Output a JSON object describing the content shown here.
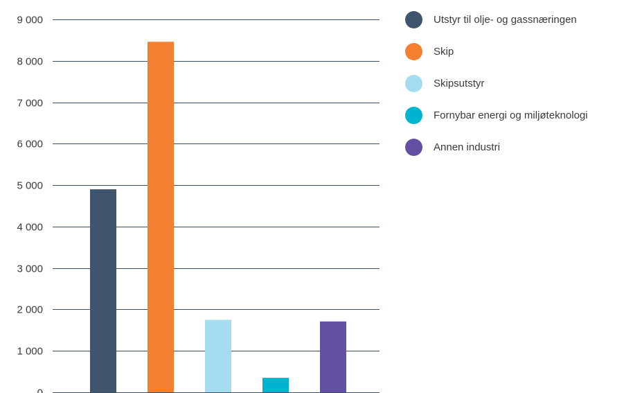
{
  "chart_data": {
    "type": "bar",
    "categories": [
      "Utstyr til olje- og gassnæringen",
      "Skip",
      "Skipsutstyr",
      "Fornybar energi og miljøteknologi",
      "Annen industri"
    ],
    "values": [
      4900,
      8460,
      1750,
      350,
      1710
    ],
    "colors": [
      "#3f546d",
      "#f38031",
      "#a6dcf0",
      "#00b3cf",
      "#6450a3"
    ],
    "ylim": [
      0,
      9000
    ],
    "yticks": [
      0,
      1000,
      2000,
      3000,
      4000,
      5000,
      6000,
      7000,
      8000,
      9000
    ],
    "ytick_labels": [
      "0",
      "1 000",
      "2 000",
      "3 000",
      "4 000",
      "5 000",
      "6 000",
      "7 000",
      "8 000",
      "9 000"
    ],
    "title": "",
    "xlabel": "",
    "ylabel": "",
    "grid": true,
    "legend_position": "right"
  }
}
